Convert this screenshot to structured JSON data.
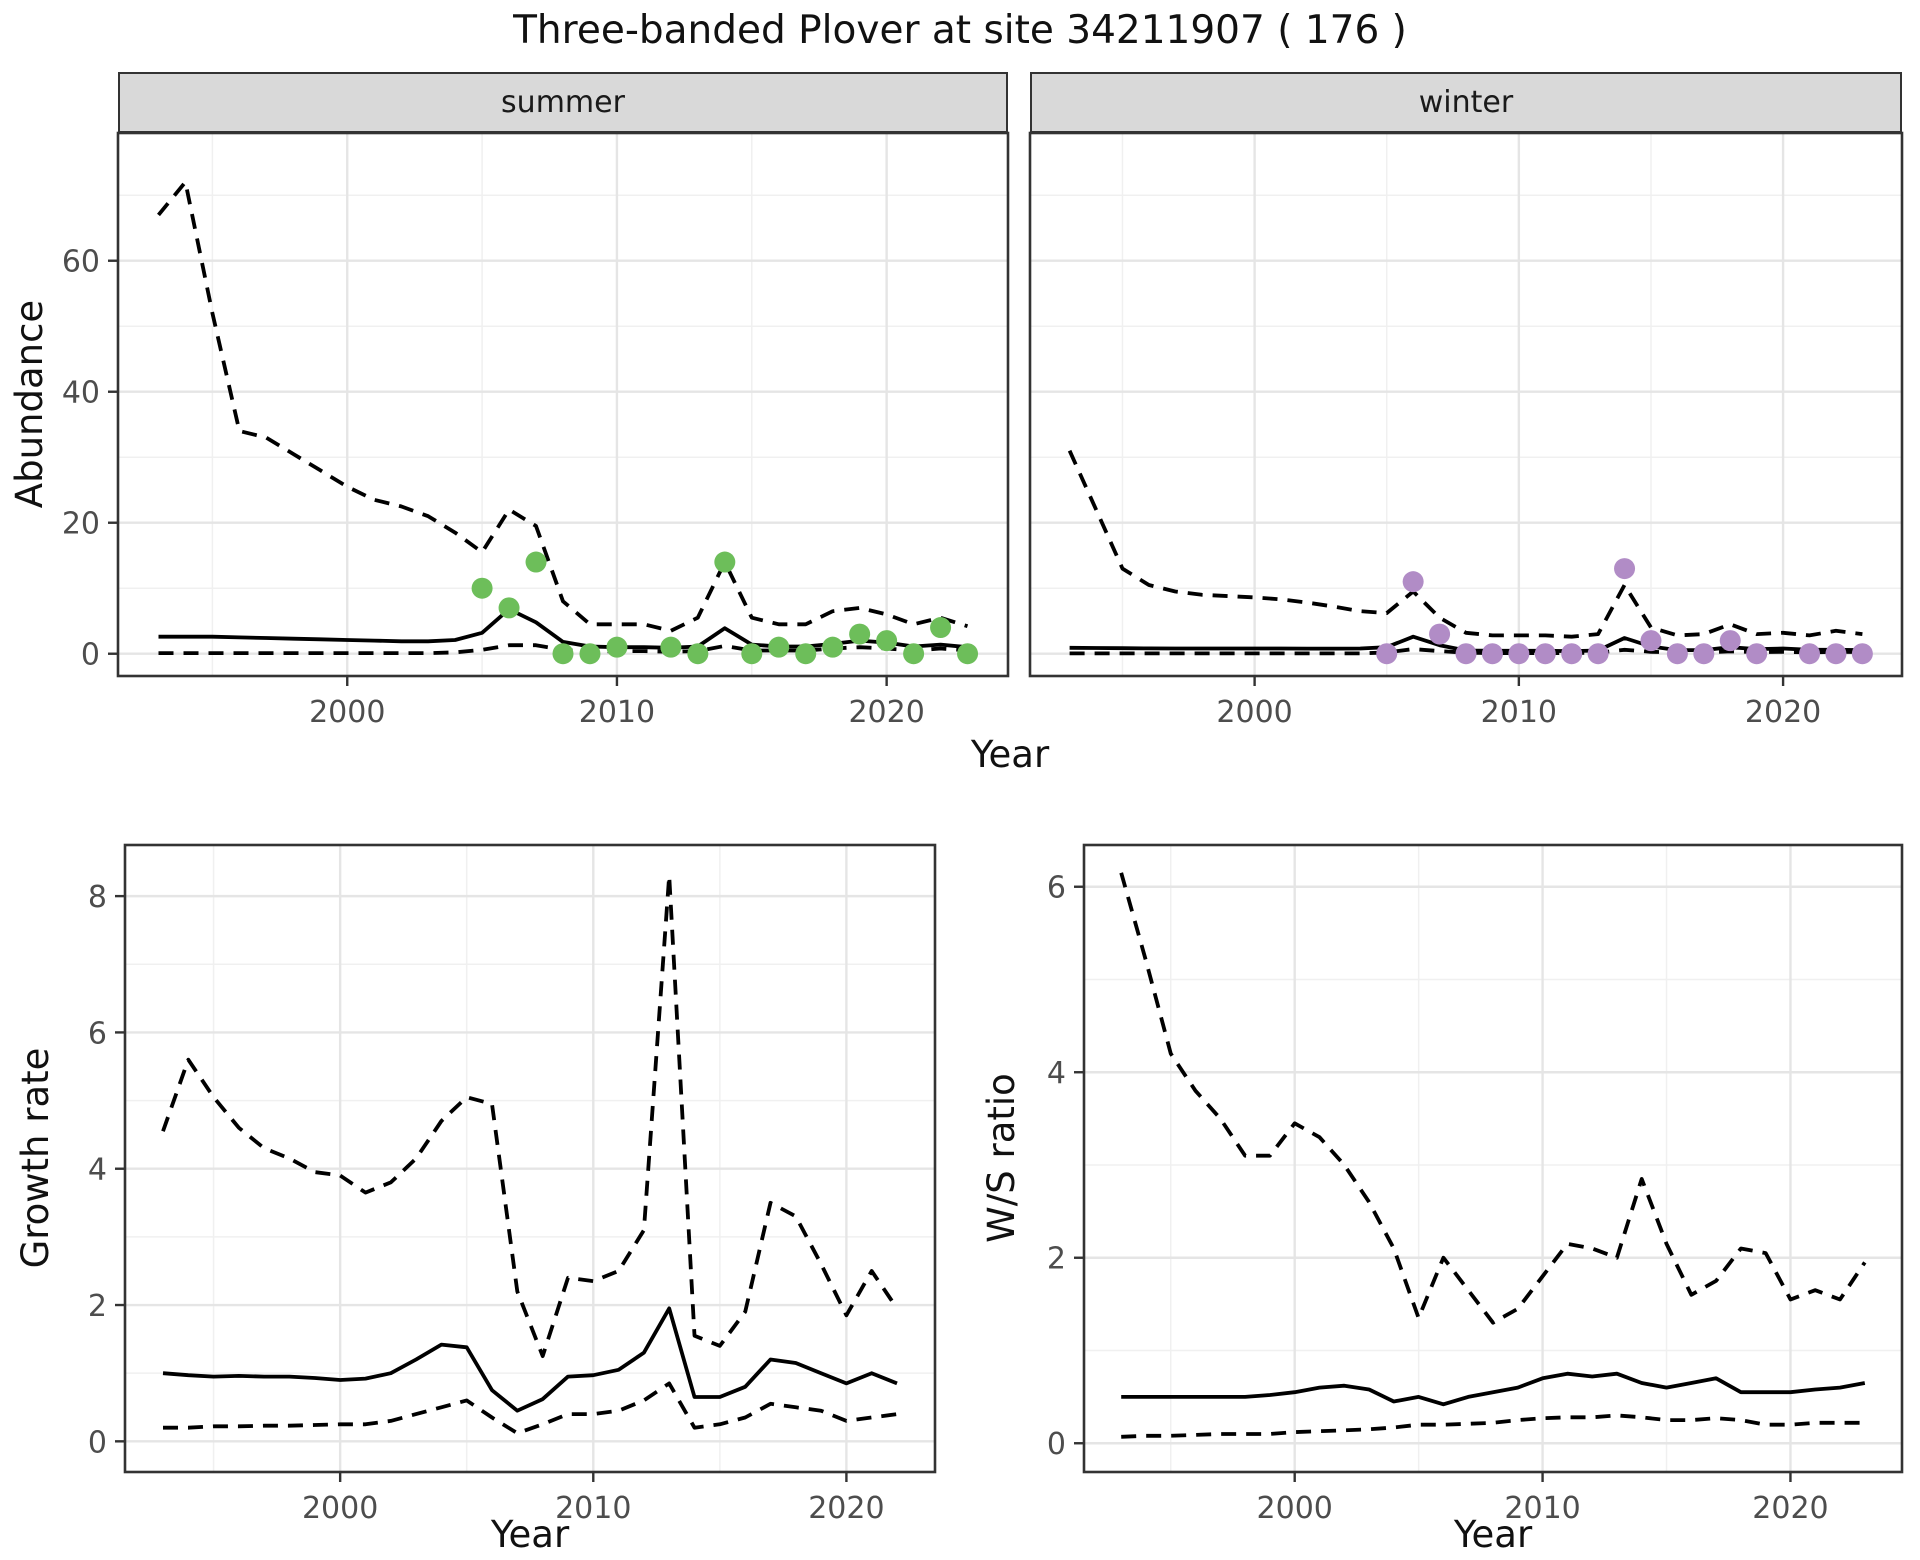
{
  "title": "Three-banded Plover at site 34211907 ( 176 )",
  "facets": [
    "summer",
    "winter"
  ],
  "axis_titles": {
    "abundance": "Abundance",
    "year": "Year",
    "growth": "Growth rate",
    "ws": "W/S ratio"
  },
  "colors": {
    "background": "#ffffff",
    "grid_major": "#e5e5e5",
    "grid_minor": "#f0f0f0",
    "panel_border": "#333333",
    "axis_text": "#4d4d4d",
    "line": "#000000",
    "strip_bg": "#d9d9d9",
    "point_green": "#6dbe5a",
    "point_purple": "#b18cc6"
  },
  "chart_data": [
    {
      "id": "summer",
      "type": "line",
      "facet": "summer",
      "xlabel": "Year",
      "ylabel": "Abundance",
      "x_start": 1993,
      "xlim": [
        1991.5,
        2024.5
      ],
      "ylim": [
        -3.4,
        79.5
      ],
      "xticks": [
        2000,
        2010,
        2020
      ],
      "xminor": [
        1995,
        2005,
        2015
      ],
      "yticks": [
        0,
        20,
        40,
        60
      ],
      "yminor": [
        10,
        30,
        50,
        70
      ],
      "upper": [
        67,
        72,
        52,
        34,
        33,
        30.5,
        28,
        25.5,
        23.5,
        22.5,
        21,
        18.5,
        15.5,
        22,
        19.5,
        8,
        4.5,
        4.5,
        4.5,
        3.5,
        5.5,
        14,
        5.5,
        4.5,
        4.5,
        6.5,
        7,
        6,
        4.5,
        5.5,
        4.2
      ],
      "median": [
        2.6,
        2.6,
        2.6,
        2.5,
        2.4,
        2.3,
        2.2,
        2.1,
        2.0,
        1.9,
        1.9,
        2.1,
        3.2,
        6.8,
        4.8,
        1.8,
        1.1,
        1.0,
        1.0,
        0.9,
        1.1,
        3.9,
        1.4,
        1.1,
        1.1,
        1.5,
        2.0,
        1.7,
        1.1,
        1.4,
        1.0
      ],
      "lower": [
        0.1,
        0.1,
        0.1,
        0.1,
        0.1,
        0.1,
        0.1,
        0.1,
        0.1,
        0.1,
        0.1,
        0.2,
        0.6,
        1.3,
        1.3,
        0.6,
        0.3,
        0.4,
        0.4,
        0.3,
        0.4,
        1.2,
        0.5,
        0.5,
        0.5,
        0.8,
        1.0,
        0.8,
        0.5,
        0.8,
        0.5
      ],
      "points": {
        "x": [
          2005,
          2006,
          2007,
          2008,
          2009,
          2010,
          2012,
          2013,
          2014,
          2015,
          2016,
          2017,
          2018,
          2019,
          2020,
          2021,
          2022,
          2023
        ],
        "y": [
          10,
          7,
          14,
          0,
          0,
          1,
          1,
          0,
          14,
          0,
          1,
          0,
          1,
          3,
          2,
          0,
          4,
          0
        ]
      },
      "point_color": "#6dbe5a"
    },
    {
      "id": "winter",
      "type": "line",
      "facet": "winter",
      "xlabel": "Year",
      "ylabel": "Abundance",
      "x_start": 1993,
      "xlim": [
        1991.5,
        2024.5
      ],
      "ylim": [
        -3.4,
        79.5
      ],
      "xticks": [
        2000,
        2010,
        2020
      ],
      "xminor": [
        1995,
        2005,
        2015
      ],
      "yticks": [
        0,
        20,
        40,
        60
      ],
      "yminor": [
        10,
        30,
        50,
        70
      ],
      "upper": [
        31,
        22,
        13,
        10.5,
        9.5,
        9,
        8.8,
        8.6,
        8.3,
        7.8,
        7.2,
        6.5,
        6.2,
        9.5,
        5.5,
        3.2,
        2.8,
        2.8,
        2.8,
        2.6,
        3.0,
        10.5,
        4.0,
        2.8,
        3.0,
        4.5,
        3.0,
        3.2,
        2.8,
        3.5,
        3.0
      ],
      "median": [
        0.9,
        0.88,
        0.85,
        0.82,
        0.8,
        0.8,
        0.8,
        0.8,
        0.8,
        0.78,
        0.78,
        0.8,
        1.0,
        2.6,
        1.3,
        0.5,
        0.45,
        0.45,
        0.45,
        0.4,
        0.5,
        2.4,
        1.1,
        0.55,
        0.55,
        1.0,
        0.7,
        0.8,
        0.6,
        0.6,
        0.55
      ],
      "lower": [
        0.05,
        0.05,
        0.05,
        0.05,
        0.05,
        0.05,
        0.05,
        0.05,
        0.05,
        0.05,
        0.05,
        0.05,
        0.2,
        0.7,
        0.4,
        0.15,
        0.1,
        0.1,
        0.1,
        0.1,
        0.15,
        0.6,
        0.3,
        0.2,
        0.2,
        0.35,
        0.25,
        0.3,
        0.2,
        0.3,
        0.25
      ],
      "points": {
        "x": [
          2005,
          2006,
          2007,
          2008,
          2009,
          2010,
          2011,
          2012,
          2013,
          2014,
          2015,
          2016,
          2017,
          2018,
          2019,
          2021,
          2022,
          2023
        ],
        "y": [
          0,
          11,
          3,
          0,
          0,
          0,
          0,
          0,
          0,
          13,
          2,
          0,
          0,
          2,
          0,
          0,
          0,
          0
        ]
      },
      "point_color": "#b18cc6"
    },
    {
      "id": "growth",
      "type": "line",
      "xlabel": "Year",
      "ylabel": "Growth rate",
      "x_start": 1993,
      "xlim": [
        1991.5,
        2023.5
      ],
      "ylim": [
        -0.45,
        8.75
      ],
      "xticks": [
        2000,
        2010,
        2020
      ],
      "xminor": [
        1995,
        2005,
        2015
      ],
      "yticks": [
        0,
        2,
        4,
        6,
        8
      ],
      "yminor": [
        1,
        3,
        5,
        7
      ],
      "upper": [
        4.55,
        5.6,
        5.05,
        4.6,
        4.3,
        4.15,
        3.95,
        3.9,
        3.65,
        3.8,
        4.15,
        4.7,
        5.05,
        4.95,
        2.2,
        1.25,
        2.4,
        2.35,
        2.5,
        3.1,
        8.3,
        1.55,
        1.4,
        1.9,
        3.5,
        3.3,
        2.6,
        1.85,
        2.5,
        1.95
      ],
      "median": [
        1.0,
        0.97,
        0.95,
        0.96,
        0.95,
        0.95,
        0.93,
        0.9,
        0.92,
        1.0,
        1.2,
        1.42,
        1.38,
        0.75,
        0.45,
        0.62,
        0.95,
        0.97,
        1.05,
        1.3,
        1.95,
        0.65,
        0.65,
        0.8,
        1.2,
        1.15,
        1.0,
        0.85,
        1.0,
        0.85
      ],
      "lower": [
        0.2,
        0.2,
        0.22,
        0.22,
        0.23,
        0.23,
        0.24,
        0.25,
        0.25,
        0.3,
        0.4,
        0.5,
        0.6,
        0.35,
        0.12,
        0.25,
        0.4,
        0.4,
        0.45,
        0.6,
        0.85,
        0.2,
        0.25,
        0.35,
        0.55,
        0.5,
        0.45,
        0.3,
        0.35,
        0.4
      ]
    },
    {
      "id": "ws",
      "type": "line",
      "xlabel": "Year",
      "ylabel": "W/S ratio",
      "x_start": 1993,
      "xlim": [
        1991.5,
        2024.5
      ],
      "ylim": [
        -0.31,
        6.45
      ],
      "xticks": [
        2000,
        2010,
        2020
      ],
      "xminor": [
        1995,
        2005,
        2015
      ],
      "yticks": [
        0,
        2,
        4,
        6
      ],
      "yminor": [
        1,
        3,
        5
      ],
      "upper": [
        6.15,
        5.2,
        4.2,
        3.8,
        3.5,
        3.1,
        3.1,
        3.45,
        3.3,
        3.0,
        2.6,
        2.1,
        1.35,
        2.0,
        1.65,
        1.3,
        1.45,
        1.8,
        2.15,
        2.1,
        2.0,
        2.85,
        2.15,
        1.6,
        1.75,
        2.1,
        2.05,
        1.55,
        1.65,
        1.55,
        1.95
      ],
      "median": [
        0.5,
        0.5,
        0.5,
        0.5,
        0.5,
        0.5,
        0.52,
        0.55,
        0.6,
        0.62,
        0.58,
        0.45,
        0.5,
        0.42,
        0.5,
        0.55,
        0.6,
        0.7,
        0.75,
        0.72,
        0.75,
        0.65,
        0.6,
        0.65,
        0.7,
        0.55,
        0.55,
        0.55,
        0.58,
        0.6,
        0.65
      ],
      "lower": [
        0.07,
        0.08,
        0.08,
        0.09,
        0.1,
        0.1,
        0.1,
        0.12,
        0.13,
        0.14,
        0.15,
        0.17,
        0.2,
        0.2,
        0.21,
        0.22,
        0.25,
        0.27,
        0.28,
        0.28,
        0.3,
        0.28,
        0.25,
        0.25,
        0.27,
        0.25,
        0.2,
        0.2,
        0.22,
        0.22,
        0.22
      ]
    }
  ]
}
